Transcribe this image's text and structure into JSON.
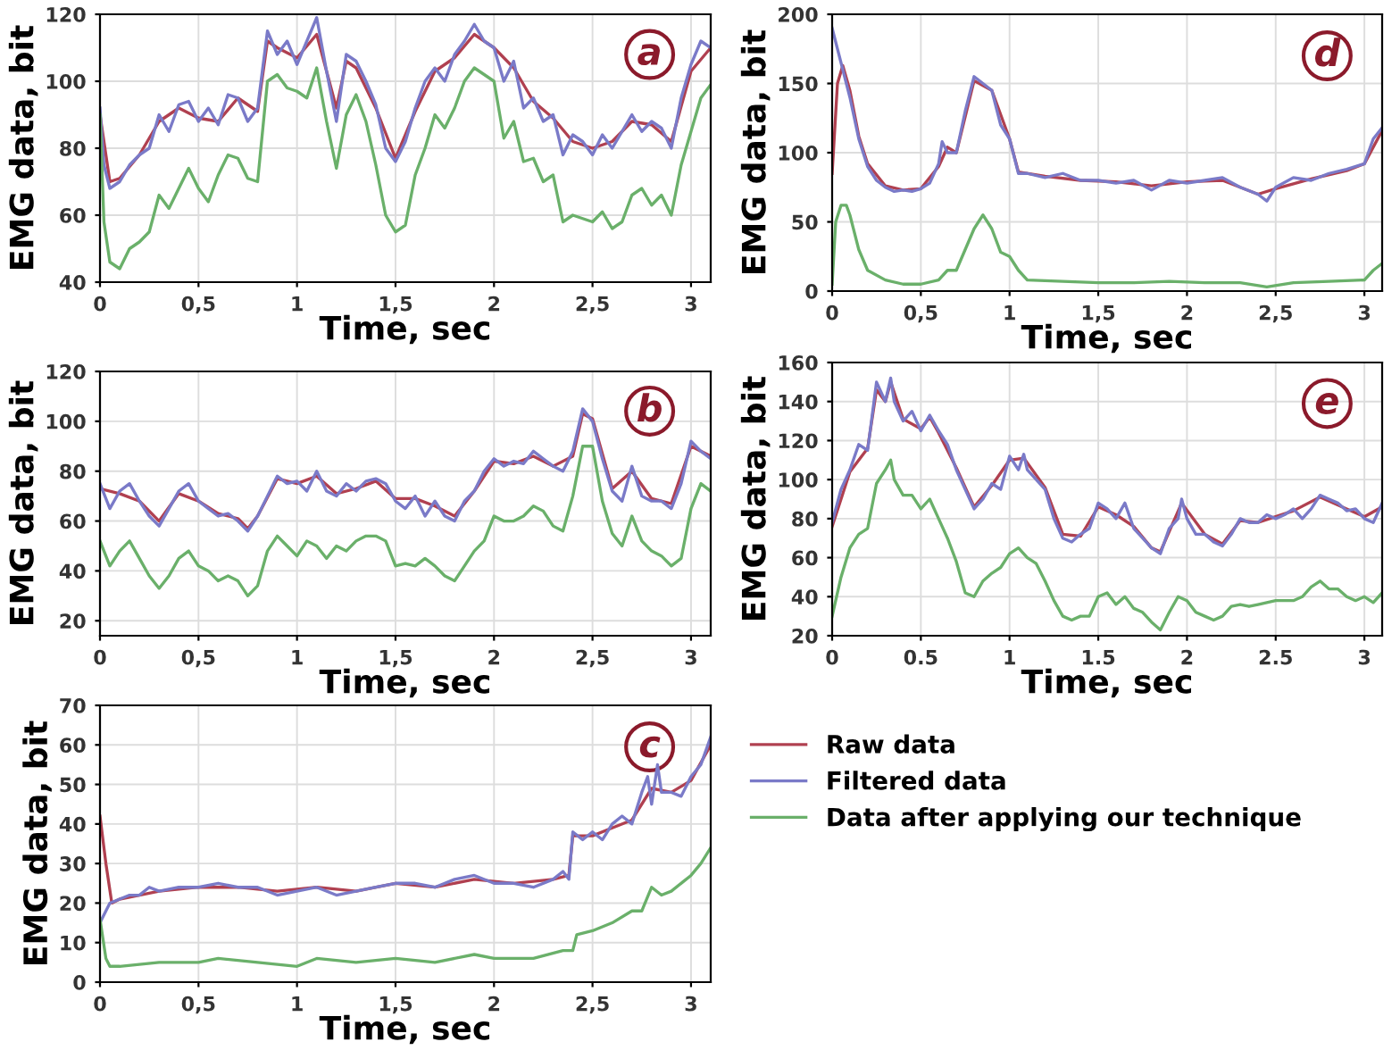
{
  "chart_data": [
    {
      "type": "line",
      "xlabel": "Time, sec",
      "ylabel": "EMG data, bit",
      "annotations": [
        "a"
      ],
      "xlim": [
        0,
        3.1
      ],
      "ylim": [
        40,
        120
      ],
      "xticks": [
        0,
        {
          "value": 0.5,
          "label": "0,5"
        },
        1,
        {
          "value": 1.5,
          "label": "1,5"
        },
        2,
        {
          "value": 2.5,
          "label": "2,5"
        },
        3
      ],
      "yticks": [
        40,
        60,
        80,
        100,
        120
      ],
      "grid": true,
      "legend": false,
      "series": [
        {
          "color": "#b04050",
          "x": [
            0,
            0.05,
            0.1,
            0.2,
            0.3,
            0.4,
            0.5,
            0.6,
            0.7,
            0.8,
            0.85,
            0.9,
            1.0,
            1.1,
            1.2,
            1.25,
            1.3,
            1.4,
            1.5,
            1.6,
            1.7,
            1.8,
            1.9,
            2.0,
            2.1,
            2.2,
            2.3,
            2.4,
            2.5,
            2.6,
            2.7,
            2.8,
            2.9,
            3.0,
            3.1
          ],
          "values": [
            90,
            70,
            71,
            78,
            88,
            92,
            89,
            88,
            95,
            91,
            112,
            110,
            107,
            114,
            92,
            106,
            104,
            92,
            77,
            91,
            103,
            107,
            114,
            110,
            104,
            94,
            89,
            82,
            80,
            82,
            88,
            87,
            82,
            103,
            110
          ]
        },
        {
          "color": "#7a7ac8",
          "x": [
            0,
            0.02,
            0.05,
            0.1,
            0.15,
            0.2,
            0.25,
            0.3,
            0.35,
            0.4,
            0.45,
            0.5,
            0.55,
            0.6,
            0.65,
            0.7,
            0.75,
            0.8,
            0.85,
            0.9,
            0.95,
            1.0,
            1.05,
            1.1,
            1.15,
            1.2,
            1.25,
            1.3,
            1.35,
            1.4,
            1.45,
            1.5,
            1.55,
            1.6,
            1.65,
            1.7,
            1.75,
            1.8,
            1.85,
            1.9,
            1.95,
            2.0,
            2.05,
            2.1,
            2.15,
            2.2,
            2.25,
            2.3,
            2.35,
            2.4,
            2.45,
            2.5,
            2.55,
            2.6,
            2.65,
            2.7,
            2.75,
            2.8,
            2.85,
            2.9,
            2.95,
            3.0,
            3.05,
            3.1
          ],
          "values": [
            92,
            75,
            68,
            70,
            75,
            78,
            80,
            90,
            85,
            93,
            94,
            88,
            92,
            87,
            96,
            95,
            88,
            92,
            115,
            108,
            112,
            105,
            112,
            119,
            103,
            88,
            108,
            106,
            100,
            93,
            80,
            76,
            82,
            92,
            100,
            104,
            100,
            108,
            112,
            117,
            112,
            110,
            100,
            106,
            92,
            95,
            88,
            90,
            78,
            84,
            82,
            78,
            84,
            80,
            85,
            90,
            85,
            88,
            86,
            80,
            95,
            105,
            112,
            110
          ]
        },
        {
          "color": "#6ab06a",
          "x": [
            0,
            0.02,
            0.05,
            0.1,
            0.15,
            0.2,
            0.25,
            0.3,
            0.35,
            0.4,
            0.45,
            0.5,
            0.55,
            0.6,
            0.65,
            0.7,
            0.75,
            0.8,
            0.85,
            0.9,
            0.95,
            1.0,
            1.05,
            1.1,
            1.15,
            1.2,
            1.25,
            1.3,
            1.35,
            1.4,
            1.45,
            1.5,
            1.55,
            1.6,
            1.65,
            1.7,
            1.75,
            1.8,
            1.85,
            1.9,
            1.95,
            2.0,
            2.05,
            2.1,
            2.15,
            2.2,
            2.25,
            2.3,
            2.35,
            2.4,
            2.45,
            2.5,
            2.55,
            2.6,
            2.65,
            2.7,
            2.75,
            2.8,
            2.85,
            2.9,
            2.95,
            3.0,
            3.05,
            3.1
          ],
          "values": [
            90,
            58,
            46,
            44,
            50,
            52,
            55,
            66,
            62,
            68,
            74,
            68,
            64,
            72,
            78,
            77,
            71,
            70,
            100,
            102,
            98,
            97,
            95,
            104,
            88,
            74,
            90,
            96,
            88,
            75,
            60,
            55,
            57,
            72,
            80,
            90,
            86,
            92,
            100,
            104,
            102,
            100,
            83,
            88,
            76,
            77,
            70,
            72,
            58,
            60,
            59,
            58,
            61,
            56,
            58,
            66,
            68,
            63,
            66,
            60,
            75,
            85,
            95,
            99
          ]
        }
      ]
    },
    {
      "type": "line",
      "xlabel": "Time, sec",
      "ylabel": "EMG data, bit",
      "annotations": [
        "d"
      ],
      "xlim": [
        0,
        3.1
      ],
      "ylim": [
        0,
        200
      ],
      "xticks": [
        0,
        {
          "value": 0.5,
          "label": "0,5"
        },
        1,
        {
          "value": 1.5,
          "label": "1,5"
        },
        2,
        {
          "value": 2.5,
          "label": "2,5"
        },
        3
      ],
      "yticks": [
        0,
        50,
        100,
        150,
        200
      ],
      "grid": true,
      "legend": false,
      "series": [
        {
          "color": "#b04050",
          "x": [
            0,
            0.03,
            0.06,
            0.1,
            0.15,
            0.2,
            0.3,
            0.4,
            0.5,
            0.6,
            0.65,
            0.7,
            0.8,
            0.9,
            1.0,
            1.05,
            1.2,
            1.4,
            1.6,
            1.8,
            2.0,
            2.2,
            2.4,
            2.5,
            2.7,
            2.9,
            3.0,
            3.1
          ],
          "values": [
            85,
            150,
            163,
            145,
            112,
            92,
            76,
            73,
            74,
            90,
            104,
            100,
            152,
            145,
            110,
            86,
            83,
            80,
            79,
            76,
            79,
            80,
            70,
            74,
            81,
            87,
            92,
            116
          ]
        },
        {
          "color": "#7a7ac8",
          "x": [
            0,
            0.03,
            0.06,
            0.1,
            0.15,
            0.2,
            0.25,
            0.3,
            0.35,
            0.4,
            0.45,
            0.5,
            0.55,
            0.6,
            0.62,
            0.65,
            0.7,
            0.75,
            0.8,
            0.85,
            0.9,
            0.95,
            1.0,
            1.05,
            1.1,
            1.2,
            1.3,
            1.4,
            1.5,
            1.6,
            1.7,
            1.8,
            1.9,
            2.0,
            2.1,
            2.2,
            2.3,
            2.4,
            2.45,
            2.5,
            2.6,
            2.7,
            2.8,
            2.9,
            3.0,
            3.05,
            3.1
          ],
          "values": [
            190,
            175,
            160,
            140,
            110,
            90,
            80,
            75,
            72,
            73,
            72,
            74,
            78,
            92,
            108,
            100,
            100,
            130,
            155,
            150,
            145,
            120,
            110,
            85,
            85,
            82,
            85,
            80,
            80,
            78,
            80,
            73,
            80,
            78,
            80,
            82,
            75,
            70,
            65,
            75,
            82,
            80,
            85,
            88,
            92,
            110,
            118
          ]
        },
        {
          "color": "#6ab06a",
          "x": [
            0,
            0.02,
            0.05,
            0.08,
            0.1,
            0.15,
            0.2,
            0.3,
            0.4,
            0.5,
            0.6,
            0.65,
            0.7,
            0.75,
            0.8,
            0.85,
            0.9,
            0.95,
            1.0,
            1.05,
            1.1,
            1.3,
            1.5,
            1.7,
            1.9,
            2.1,
            2.3,
            2.45,
            2.6,
            2.8,
            3.0,
            3.05,
            3.1
          ],
          "values": [
            5,
            50,
            62,
            62,
            55,
            30,
            15,
            8,
            5,
            5,
            8,
            15,
            15,
            30,
            45,
            55,
            45,
            28,
            25,
            15,
            8,
            7,
            6,
            6,
            7,
            6,
            6,
            3,
            6,
            7,
            8,
            15,
            20
          ]
        }
      ]
    },
    {
      "type": "line",
      "xlabel": "Time, sec",
      "ylabel": "EMG data, bit",
      "annotations": [
        "b"
      ],
      "xlim": [
        0,
        3.1
      ],
      "ylim": [
        14,
        120
      ],
      "xticks": [
        0,
        {
          "value": 0.5,
          "label": "0,5"
        },
        1,
        {
          "value": 1.5,
          "label": "1,5"
        },
        2,
        {
          "value": 2.5,
          "label": "2,5"
        },
        3
      ],
      "yticks": [
        20,
        40,
        60,
        80,
        100,
        120
      ],
      "grid": true,
      "legend": false,
      "series": [
        {
          "color": "#b04050",
          "x": [
            0,
            0.1,
            0.2,
            0.3,
            0.4,
            0.5,
            0.6,
            0.7,
            0.75,
            0.8,
            0.9,
            1.0,
            1.1,
            1.2,
            1.3,
            1.4,
            1.5,
            1.6,
            1.7,
            1.8,
            1.9,
            2.0,
            2.1,
            2.2,
            2.3,
            2.4,
            2.45,
            2.5,
            2.6,
            2.7,
            2.8,
            2.9,
            3.0,
            3.1
          ],
          "values": [
            73,
            71,
            68,
            60,
            71,
            68,
            63,
            61,
            57,
            62,
            77,
            75,
            78,
            71,
            73,
            76,
            69,
            69,
            66,
            62,
            72,
            84,
            83,
            86,
            82,
            86,
            103,
            101,
            73,
            80,
            69,
            67,
            90,
            86
          ]
        },
        {
          "color": "#7a7ac8",
          "x": [
            0,
            0.05,
            0.1,
            0.15,
            0.2,
            0.25,
            0.3,
            0.35,
            0.4,
            0.45,
            0.5,
            0.55,
            0.6,
            0.65,
            0.7,
            0.75,
            0.8,
            0.85,
            0.9,
            0.95,
            1.0,
            1.05,
            1.1,
            1.15,
            1.2,
            1.25,
            1.3,
            1.35,
            1.4,
            1.45,
            1.5,
            1.55,
            1.6,
            1.65,
            1.7,
            1.75,
            1.8,
            1.85,
            1.9,
            1.95,
            2.0,
            2.05,
            2.1,
            2.15,
            2.2,
            2.25,
            2.3,
            2.35,
            2.4,
            2.45,
            2.5,
            2.55,
            2.6,
            2.65,
            2.7,
            2.75,
            2.8,
            2.85,
            2.9,
            2.95,
            3.0,
            3.05,
            3.1
          ],
          "values": [
            75,
            65,
            72,
            75,
            68,
            62,
            58,
            65,
            72,
            75,
            68,
            65,
            62,
            63,
            60,
            56,
            62,
            70,
            78,
            75,
            76,
            72,
            80,
            72,
            70,
            75,
            72,
            76,
            77,
            75,
            68,
            65,
            70,
            62,
            68,
            62,
            60,
            68,
            72,
            80,
            85,
            82,
            84,
            83,
            88,
            85,
            82,
            80,
            88,
            105,
            100,
            85,
            72,
            68,
            82,
            70,
            68,
            68,
            65,
            75,
            92,
            88,
            85
          ]
        },
        {
          "color": "#6ab06a",
          "x": [
            0,
            0.05,
            0.1,
            0.15,
            0.2,
            0.25,
            0.3,
            0.35,
            0.4,
            0.45,
            0.5,
            0.55,
            0.6,
            0.65,
            0.7,
            0.75,
            0.8,
            0.85,
            0.9,
            0.95,
            1.0,
            1.05,
            1.1,
            1.15,
            1.2,
            1.25,
            1.3,
            1.35,
            1.4,
            1.45,
            1.5,
            1.55,
            1.6,
            1.65,
            1.7,
            1.75,
            1.8,
            1.85,
            1.9,
            1.95,
            2.0,
            2.05,
            2.1,
            2.15,
            2.2,
            2.25,
            2.3,
            2.35,
            2.4,
            2.45,
            2.5,
            2.55,
            2.6,
            2.65,
            2.7,
            2.75,
            2.8,
            2.85,
            2.9,
            2.95,
            3.0,
            3.05,
            3.1
          ],
          "values": [
            52,
            42,
            48,
            52,
            45,
            38,
            33,
            38,
            45,
            48,
            42,
            40,
            36,
            38,
            36,
            30,
            34,
            48,
            54,
            50,
            46,
            52,
            50,
            45,
            50,
            48,
            52,
            54,
            54,
            52,
            42,
            43,
            42,
            45,
            42,
            38,
            36,
            42,
            48,
            52,
            62,
            60,
            60,
            62,
            66,
            64,
            58,
            56,
            70,
            90,
            90,
            68,
            55,
            50,
            62,
            52,
            48,
            46,
            42,
            45,
            65,
            75,
            72
          ]
        }
      ]
    },
    {
      "type": "line",
      "xlabel": "Time, sec",
      "ylabel": "EMG data, bit",
      "annotations": [
        "e"
      ],
      "xlim": [
        0,
        3.1
      ],
      "ylim": [
        20,
        160
      ],
      "xticks": [
        0,
        0.5,
        1,
        1.5,
        2,
        2.5,
        3
      ],
      "yticks": [
        20,
        40,
        60,
        80,
        100,
        120,
        140,
        160
      ],
      "grid": true,
      "legend": false,
      "series": [
        {
          "color": "#b04050",
          "x": [
            0,
            0.1,
            0.2,
            0.25,
            0.3,
            0.33,
            0.4,
            0.5,
            0.55,
            0.6,
            0.7,
            0.8,
            0.9,
            1.0,
            1.08,
            1.2,
            1.3,
            1.4,
            1.5,
            1.6,
            1.7,
            1.8,
            1.85,
            1.97,
            2.1,
            2.2,
            2.3,
            2.4,
            2.5,
            2.6,
            2.75,
            2.9,
            3.0,
            3.1
          ],
          "values": [
            76,
            104,
            116,
            146,
            140,
            150,
            131,
            126,
            132,
            124,
            106,
            86,
            97,
            110,
            111,
            96,
            72,
            71,
            86,
            82,
            76,
            65,
            63,
            88,
            72,
            67,
            79,
            78,
            81,
            84,
            91,
            85,
            81,
            86
          ]
        },
        {
          "color": "#7a7ac8",
          "x": [
            0,
            0.05,
            0.1,
            0.15,
            0.2,
            0.25,
            0.3,
            0.33,
            0.35,
            0.4,
            0.45,
            0.5,
            0.55,
            0.6,
            0.65,
            0.7,
            0.75,
            0.8,
            0.85,
            0.9,
            0.95,
            1.0,
            1.05,
            1.08,
            1.1,
            1.15,
            1.2,
            1.25,
            1.3,
            1.35,
            1.4,
            1.45,
            1.5,
            1.55,
            1.6,
            1.65,
            1.7,
            1.75,
            1.8,
            1.85,
            1.9,
            1.95,
            1.97,
            2.0,
            2.05,
            2.1,
            2.15,
            2.2,
            2.25,
            2.3,
            2.35,
            2.4,
            2.45,
            2.5,
            2.55,
            2.6,
            2.65,
            2.7,
            2.75,
            2.8,
            2.85,
            2.9,
            2.95,
            3.0,
            3.05,
            3.1
          ],
          "values": [
            78,
            95,
            105,
            118,
            115,
            150,
            140,
            152,
            140,
            130,
            135,
            125,
            133,
            125,
            118,
            105,
            95,
            85,
            90,
            98,
            95,
            112,
            105,
            113,
            105,
            100,
            95,
            80,
            70,
            68,
            72,
            75,
            88,
            85,
            80,
            88,
            75,
            70,
            65,
            62,
            75,
            80,
            90,
            80,
            72,
            72,
            68,
            66,
            72,
            80,
            78,
            78,
            82,
            80,
            82,
            85,
            80,
            85,
            92,
            90,
            88,
            84,
            85,
            80,
            78,
            88
          ]
        },
        {
          "color": "#6ab06a",
          "x": [
            0,
            0.05,
            0.1,
            0.15,
            0.2,
            0.25,
            0.3,
            0.33,
            0.35,
            0.4,
            0.45,
            0.5,
            0.55,
            0.6,
            0.65,
            0.7,
            0.75,
            0.8,
            0.85,
            0.9,
            0.95,
            1.0,
            1.05,
            1.1,
            1.15,
            1.2,
            1.25,
            1.3,
            1.35,
            1.4,
            1.45,
            1.5,
            1.55,
            1.6,
            1.65,
            1.7,
            1.75,
            1.8,
            1.85,
            1.9,
            1.95,
            2.0,
            2.05,
            2.1,
            2.15,
            2.2,
            2.25,
            2.3,
            2.35,
            2.4,
            2.45,
            2.5,
            2.55,
            2.6,
            2.65,
            2.7,
            2.75,
            2.8,
            2.85,
            2.9,
            2.95,
            3.0,
            3.05,
            3.1
          ],
          "values": [
            30,
            50,
            65,
            72,
            75,
            98,
            105,
            110,
            100,
            92,
            92,
            85,
            90,
            80,
            70,
            58,
            42,
            40,
            48,
            52,
            55,
            62,
            65,
            60,
            57,
            48,
            38,
            30,
            28,
            30,
            30,
            40,
            42,
            36,
            40,
            34,
            32,
            27,
            23,
            32,
            40,
            38,
            32,
            30,
            28,
            30,
            35,
            36,
            35,
            36,
            37,
            38,
            38,
            38,
            40,
            45,
            48,
            44,
            44,
            40,
            38,
            40,
            37,
            42
          ]
        }
      ]
    },
    {
      "type": "line",
      "xlabel": "Time, sec",
      "ylabel": "EMG data, bit",
      "annotations": [
        "c"
      ],
      "xlim": [
        0,
        3.1
      ],
      "ylim": [
        0,
        70
      ],
      "xticks": [
        0,
        {
          "value": 0.5,
          "label": "0,5"
        },
        1,
        {
          "value": 1.5,
          "label": "1,5"
        },
        2,
        {
          "value": 2.5,
          "label": "2,5"
        },
        3
      ],
      "yticks": [
        0,
        10,
        20,
        30,
        40,
        50,
        60,
        70
      ],
      "grid": true,
      "legend": "right",
      "series": [
        {
          "name": "Raw data",
          "color": "#b04050",
          "x": [
            0,
            0.03,
            0.06,
            0.1,
            0.2,
            0.3,
            0.5,
            0.7,
            0.9,
            1.1,
            1.3,
            1.5,
            1.7,
            1.9,
            2.1,
            2.3,
            2.38,
            2.4,
            2.5,
            2.6,
            2.7,
            2.8,
            2.9,
            3.0,
            3.1
          ],
          "values": [
            42,
            30,
            20,
            21,
            22,
            23,
            24,
            24,
            23,
            24,
            23,
            25,
            24,
            26,
            25,
            26,
            27,
            37,
            37,
            39,
            41,
            49,
            48,
            51,
            60
          ]
        },
        {
          "name": "Filtered data",
          "color": "#7a7ac8",
          "x": [
            0,
            0.03,
            0.05,
            0.1,
            0.15,
            0.2,
            0.25,
            0.3,
            0.4,
            0.5,
            0.6,
            0.7,
            0.8,
            0.9,
            1.0,
            1.1,
            1.2,
            1.3,
            1.4,
            1.5,
            1.6,
            1.7,
            1.8,
            1.9,
            2.0,
            2.1,
            2.2,
            2.3,
            2.35,
            2.38,
            2.4,
            2.45,
            2.5,
            2.55,
            2.6,
            2.65,
            2.7,
            2.75,
            2.78,
            2.8,
            2.83,
            2.85,
            2.9,
            2.95,
            3.0,
            3.05,
            3.1
          ],
          "values": [
            15,
            18,
            20,
            21,
            22,
            22,
            24,
            23,
            24,
            24,
            25,
            24,
            24,
            22,
            23,
            24,
            22,
            23,
            24,
            25,
            25,
            24,
            26,
            27,
            25,
            25,
            24,
            26,
            28,
            26,
            38,
            36,
            38,
            36,
            40,
            42,
            40,
            48,
            52,
            45,
            55,
            48,
            48,
            47,
            52,
            55,
            62
          ]
        },
        {
          "name": "Data after applying our technique",
          "color": "#6ab06a",
          "x": [
            0,
            0.03,
            0.05,
            0.1,
            0.3,
            0.5,
            0.6,
            0.8,
            1.0,
            1.1,
            1.3,
            1.5,
            1.7,
            1.9,
            2.0,
            2.2,
            2.35,
            2.4,
            2.42,
            2.5,
            2.6,
            2.7,
            2.75,
            2.8,
            2.85,
            2.9,
            3.0,
            3.05,
            3.1
          ],
          "values": [
            16,
            6,
            4,
            4,
            5,
            5,
            6,
            5,
            4,
            6,
            5,
            6,
            5,
            7,
            6,
            6,
            8,
            8,
            12,
            13,
            15,
            18,
            18,
            24,
            22,
            23,
            27,
            30,
            34
          ]
        }
      ]
    }
  ]
}
